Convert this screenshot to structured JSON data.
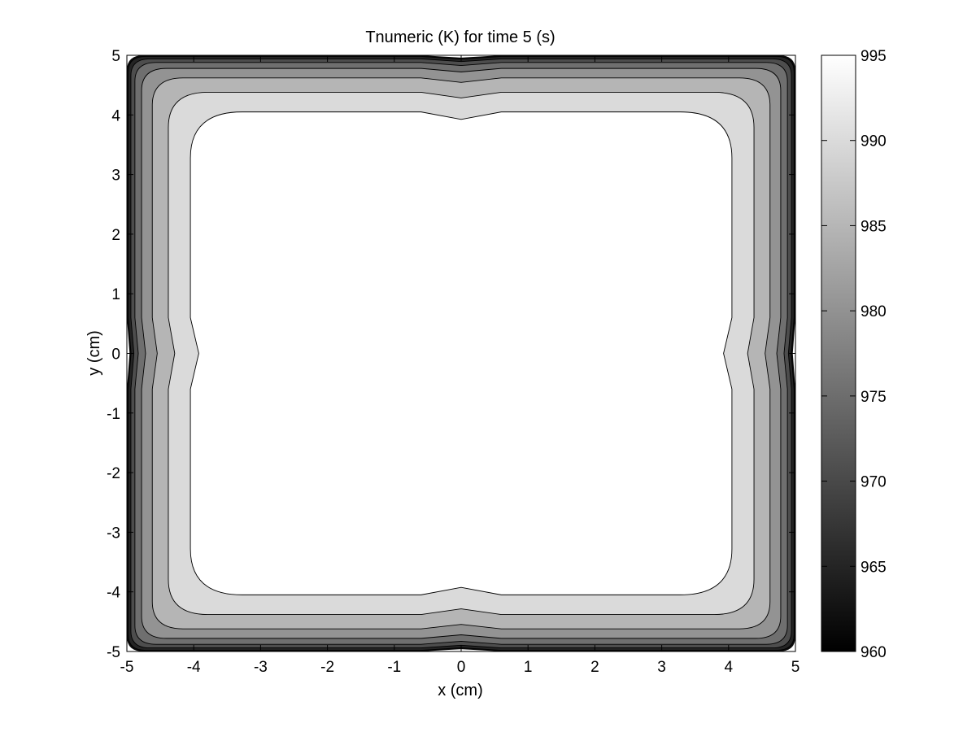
{
  "chart_data": {
    "type": "contour",
    "title": "Tnumeric (K) for time 5 (s)",
    "xlabel": "x (cm)",
    "ylabel": "y (cm)",
    "xlim": [
      -5,
      5
    ],
    "ylim": [
      -5,
      5
    ],
    "x_ticks": [
      "-5",
      "-4",
      "-3",
      "-2",
      "-1",
      "0",
      "1",
      "2",
      "3",
      "4",
      "5"
    ],
    "y_ticks": [
      "-5",
      "-4",
      "-3",
      "-2",
      "-1",
      "0",
      "1",
      "2",
      "3",
      "4",
      "5"
    ],
    "colorbar": {
      "range": [
        960,
        995
      ],
      "ticks": [
        "960",
        "965",
        "970",
        "975",
        "980",
        "985",
        "990",
        "995"
      ],
      "colormap": "gray"
    },
    "contour_bands": [
      {
        "level": 960,
        "color": "#0a0a0a",
        "inset": 0.0
      },
      {
        "level": 965,
        "color": "#242424",
        "inset": 0.02
      },
      {
        "level": 970,
        "color": "#4d4d4d",
        "inset": 0.06
      },
      {
        "level": 975,
        "color": "#6f6f6f",
        "inset": 0.12
      },
      {
        "level": 980,
        "color": "#939393",
        "inset": 0.22
      },
      {
        "level": 985,
        "color": "#b5b5b5",
        "inset": 0.38
      },
      {
        "level": 990,
        "color": "#dadada",
        "inset": 0.62
      },
      {
        "level": 995,
        "color": "#ffffff",
        "inset": 0.95
      }
    ],
    "grid": false
  }
}
